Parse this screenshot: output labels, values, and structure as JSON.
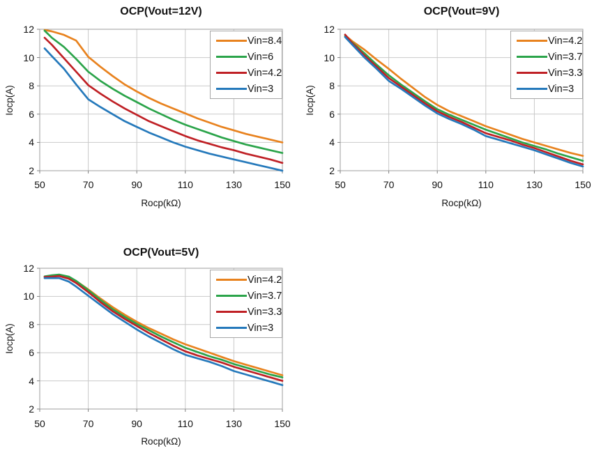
{
  "page": {
    "background": "#FFFFFF"
  },
  "styles": {
    "grid_color": "#c9c9c9",
    "plot_border_color": "#9e9e9e",
    "tick_mark_color": "#808080",
    "text_color": "#111111",
    "legend_border_color": "#a6a6a6",
    "legend_background": "#ffffff"
  },
  "chart_data": [
    {
      "type": "line",
      "title": "OCP(Vout=12V)",
      "xlabel": "Rocp(kΩ)",
      "ylabel": "Iocp(A)",
      "xlim": [
        50,
        150
      ],
      "ylim": [
        2,
        12
      ],
      "xticks": [
        50,
        70,
        90,
        110,
        130,
        150
      ],
      "yticks": [
        2,
        4,
        6,
        8,
        10,
        12
      ],
      "grid": true,
      "legend_position": "top-right",
      "x": [
        52,
        55,
        60,
        65,
        70,
        75,
        80,
        85,
        90,
        95,
        100,
        105,
        110,
        115,
        120,
        125,
        130,
        135,
        140,
        145,
        150
      ],
      "series": [
        {
          "name": "Vin=8.4",
          "color": "#E8821E",
          "values": [
            11.95,
            11.85,
            11.6,
            11.2,
            10.05,
            9.35,
            8.7,
            8.1,
            7.6,
            7.15,
            6.75,
            6.4,
            6.05,
            5.7,
            5.4,
            5.1,
            4.85,
            4.6,
            4.4,
            4.2,
            4.0
          ]
        },
        {
          "name": "Vin=6",
          "color": "#2BA44A",
          "values": [
            11.9,
            11.4,
            10.75,
            9.9,
            9.0,
            8.35,
            7.8,
            7.3,
            6.85,
            6.4,
            6.0,
            5.6,
            5.25,
            4.95,
            4.65,
            4.35,
            4.1,
            3.85,
            3.65,
            3.45,
            3.25
          ]
        },
        {
          "name": "Vin=4.2",
          "color": "#BF2025",
          "values": [
            11.4,
            10.9,
            9.95,
            9.0,
            8.05,
            7.45,
            6.9,
            6.4,
            5.95,
            5.5,
            5.15,
            4.8,
            4.45,
            4.15,
            3.9,
            3.65,
            3.45,
            3.2,
            3.0,
            2.8,
            2.55
          ]
        },
        {
          "name": "Vin=3",
          "color": "#2579BB",
          "values": [
            10.65,
            10.1,
            9.2,
            8.1,
            7.05,
            6.5,
            6.0,
            5.5,
            5.1,
            4.7,
            4.35,
            4.0,
            3.7,
            3.45,
            3.2,
            3.0,
            2.8,
            2.6,
            2.4,
            2.2,
            2.0
          ]
        }
      ]
    },
    {
      "type": "line",
      "title": "OCP(Vout=9V)",
      "xlabel": "Rocp(kΩ)",
      "ylabel": "Iocp(A)",
      "xlim": [
        50,
        150
      ],
      "ylim": [
        2,
        12
      ],
      "xticks": [
        50,
        70,
        90,
        110,
        130,
        150
      ],
      "yticks": [
        2,
        4,
        6,
        8,
        10,
        12
      ],
      "grid": true,
      "legend_position": "top-right",
      "x": [
        52,
        55,
        60,
        65,
        70,
        75,
        80,
        85,
        90,
        95,
        100,
        105,
        110,
        115,
        120,
        125,
        130,
        135,
        140,
        145,
        150
      ],
      "series": [
        {
          "name": "Vin=4.2",
          "color": "#E8821E",
          "values": [
            11.58,
            11.15,
            10.55,
            9.85,
            9.2,
            8.5,
            7.85,
            7.2,
            6.65,
            6.2,
            5.85,
            5.5,
            5.15,
            4.85,
            4.55,
            4.25,
            4.0,
            3.75,
            3.5,
            3.25,
            3.05
          ]
        },
        {
          "name": "Vin=3.7",
          "color": "#2BA44A",
          "values": [
            11.5,
            11.05,
            10.3,
            9.5,
            8.75,
            8.1,
            7.5,
            6.9,
            6.35,
            5.95,
            5.6,
            5.25,
            4.9,
            4.6,
            4.3,
            4.0,
            3.75,
            3.5,
            3.2,
            2.95,
            2.7
          ]
        },
        {
          "name": "Vin=3.3",
          "color": "#BF2025",
          "values": [
            11.62,
            11.0,
            10.15,
            9.35,
            8.55,
            7.95,
            7.35,
            6.75,
            6.2,
            5.8,
            5.45,
            5.05,
            4.65,
            4.4,
            4.15,
            3.85,
            3.6,
            3.3,
            3.0,
            2.7,
            2.45
          ]
        },
        {
          "name": "Vin=3",
          "color": "#2579BB",
          "values": [
            11.45,
            10.9,
            10.0,
            9.2,
            8.35,
            7.8,
            7.2,
            6.6,
            6.05,
            5.65,
            5.3,
            4.9,
            4.45,
            4.2,
            3.95,
            3.7,
            3.45,
            3.15,
            2.85,
            2.55,
            2.3
          ]
        }
      ]
    },
    {
      "type": "line",
      "title": "OCP(Vout=5V)",
      "xlabel": "Rocp(kΩ)",
      "ylabel": "Iocp(A)",
      "xlim": [
        50,
        150
      ],
      "ylim": [
        2,
        12
      ],
      "xticks": [
        50,
        70,
        90,
        110,
        130,
        150
      ],
      "yticks": [
        2,
        4,
        6,
        8,
        10,
        12
      ],
      "grid": true,
      "legend_position": "top-right",
      "x": [
        52,
        55,
        58,
        62,
        65,
        70,
        75,
        80,
        85,
        90,
        95,
        100,
        105,
        110,
        115,
        120,
        125,
        130,
        135,
        140,
        145,
        150
      ],
      "series": [
        {
          "name": "Vin=4.2",
          "color": "#E8821E",
          "values": [
            11.4,
            11.45,
            11.5,
            11.35,
            11.1,
            10.5,
            9.85,
            9.25,
            8.7,
            8.2,
            7.75,
            7.35,
            6.95,
            6.6,
            6.3,
            6.0,
            5.7,
            5.4,
            5.15,
            4.9,
            4.65,
            4.4
          ]
        },
        {
          "name": "Vin=3.7",
          "color": "#2BA44A",
          "values": [
            11.42,
            11.5,
            11.55,
            11.4,
            11.1,
            10.45,
            9.75,
            9.1,
            8.55,
            8.05,
            7.6,
            7.15,
            6.75,
            6.35,
            6.05,
            5.75,
            5.5,
            5.2,
            4.95,
            4.7,
            4.45,
            4.25
          ]
        },
        {
          "name": "Vin=3.3",
          "color": "#BF2025",
          "values": [
            11.38,
            11.4,
            11.45,
            11.25,
            10.95,
            10.3,
            9.6,
            8.95,
            8.4,
            7.9,
            7.4,
            6.95,
            6.5,
            6.1,
            5.8,
            5.55,
            5.3,
            5.0,
            4.75,
            4.5,
            4.25,
            4.0
          ]
        },
        {
          "name": "Vin=3",
          "color": "#2579BB",
          "values": [
            11.3,
            11.3,
            11.3,
            11.05,
            10.7,
            10.05,
            9.4,
            8.75,
            8.2,
            7.65,
            7.15,
            6.7,
            6.25,
            5.85,
            5.6,
            5.35,
            5.05,
            4.7,
            4.45,
            4.2,
            3.95,
            3.7
          ]
        }
      ]
    }
  ]
}
